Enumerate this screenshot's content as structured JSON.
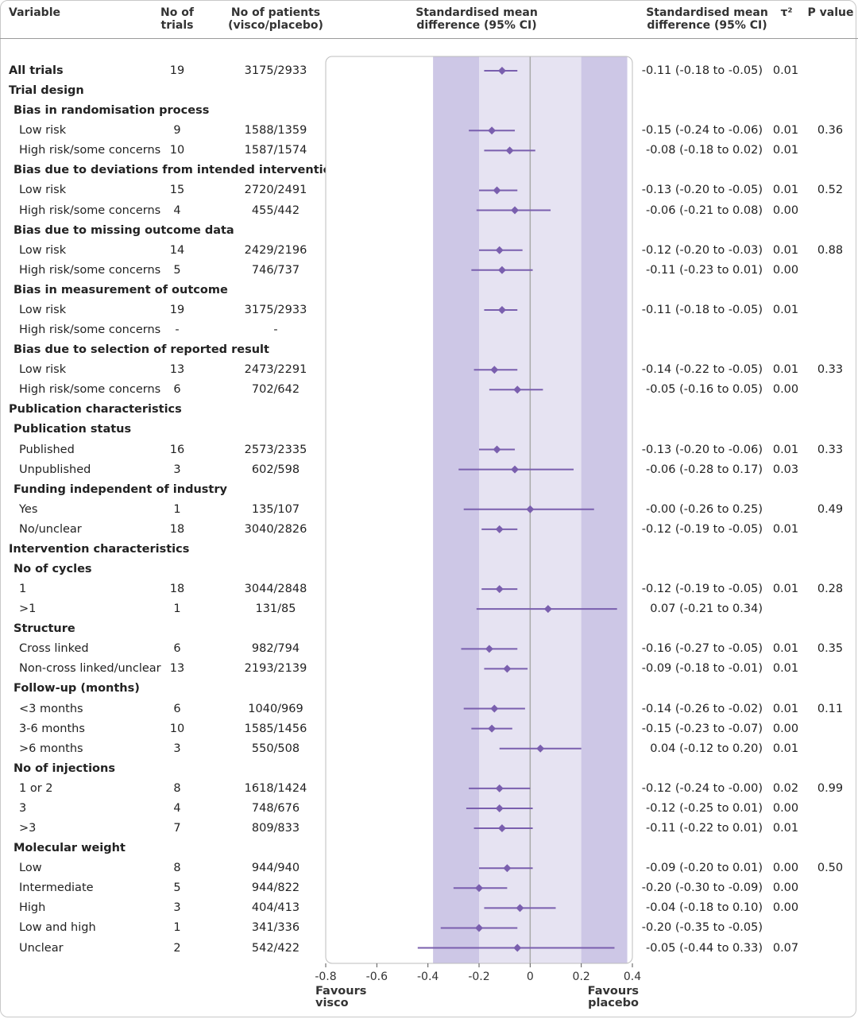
{
  "headers": {
    "variable": "Variable",
    "trials": "No of\ntrials",
    "patients": "No of patients\n(visco/placebo)",
    "plot": "Standardised mean\ndifference (95% CI)",
    "smd": "Standardised mean\ndifference (95% CI)",
    "tau": "τ²",
    "p": "P value"
  },
  "favours": {
    "left": "Favours\nvisco",
    "right": "Favours\nplacebo"
  },
  "colors": {
    "point": "#7a5fae",
    "outer_band": "#cdc7e6",
    "inner_band": "#e6e3f2",
    "zero_line": "#a9a9a9"
  },
  "chart_data": {
    "type": "forest",
    "title": "Standardised mean difference (95% CI)",
    "xlabel": "",
    "xlim": [
      -0.8,
      0.4
    ],
    "xticks": [
      -0.8,
      -0.6,
      -0.4,
      -0.2,
      0,
      0.2,
      0.4
    ],
    "xtick_labels": [
      "-0.8",
      "-0.6",
      "-0.4",
      "-0.2",
      "0",
      "0.2",
      "0.4"
    ],
    "bands": {
      "outer": [
        -0.38,
        0.38
      ],
      "inner": [
        -0.2,
        0.2
      ]
    },
    "rows": [
      {
        "label": "All trials",
        "level": 0,
        "bold": true,
        "trials": "19",
        "patients": "3175/2933",
        "est": -0.11,
        "lo": -0.18,
        "hi": -0.05,
        "ci": "-0.11 (-0.18 to -0.05)",
        "tau": "0.01",
        "p": ""
      },
      {
        "label": "Trial design",
        "level": 0,
        "bold": true
      },
      {
        "label": "Bias in randomisation process",
        "level": 1,
        "bold": true
      },
      {
        "label": "Low risk",
        "level": 2,
        "trials": "9",
        "patients": "1588/1359",
        "est": -0.15,
        "lo": -0.24,
        "hi": -0.06,
        "ci": "-0.15 (-0.24 to -0.06)",
        "tau": "0.01",
        "p": "0.36"
      },
      {
        "label": "High risk/some concerns",
        "level": 2,
        "trials": "10",
        "patients": "1587/1574",
        "est": -0.08,
        "lo": -0.18,
        "hi": 0.02,
        "ci": "-0.08 (-0.18 to 0.02)",
        "tau": "0.01",
        "p": ""
      },
      {
        "label": "Bias due to deviations from intended interventions",
        "level": 1,
        "bold": true
      },
      {
        "label": "Low risk",
        "level": 2,
        "trials": "15",
        "patients": "2720/2491",
        "est": -0.13,
        "lo": -0.2,
        "hi": -0.05,
        "ci": "-0.13 (-0.20 to -0.05)",
        "tau": "0.01",
        "p": "0.52"
      },
      {
        "label": "High risk/some concerns",
        "level": 2,
        "trials": "4",
        "patients": "455/442",
        "est": -0.06,
        "lo": -0.21,
        "hi": 0.08,
        "ci": "-0.06 (-0.21 to 0.08)",
        "tau": "0.00",
        "p": ""
      },
      {
        "label": "Bias due to missing outcome data",
        "level": 1,
        "bold": true
      },
      {
        "label": "Low risk",
        "level": 2,
        "trials": "14",
        "patients": "2429/2196",
        "est": -0.12,
        "lo": -0.2,
        "hi": -0.03,
        "ci": "-0.12 (-0.20 to -0.03)",
        "tau": "0.01",
        "p": "0.88"
      },
      {
        "label": "High risk/some concerns",
        "level": 2,
        "trials": "5",
        "patients": "746/737",
        "est": -0.11,
        "lo": -0.23,
        "hi": 0.01,
        "ci": "-0.11 (-0.23 to 0.01)",
        "tau": "0.00",
        "p": ""
      },
      {
        "label": "Bias in measurement of outcome",
        "level": 1,
        "bold": true
      },
      {
        "label": "Low risk",
        "level": 2,
        "trials": "19",
        "patients": "3175/2933",
        "est": -0.11,
        "lo": -0.18,
        "hi": -0.05,
        "ci": "-0.11 (-0.18 to -0.05)",
        "tau": "0.01",
        "p": ""
      },
      {
        "label": "High risk/some concerns",
        "level": 2,
        "trials": "-",
        "patients": "-"
      },
      {
        "label": "Bias due to selection of reported result",
        "level": 1,
        "bold": true
      },
      {
        "label": "Low risk",
        "level": 2,
        "trials": "13",
        "patients": "2473/2291",
        "est": -0.14,
        "lo": -0.22,
        "hi": -0.05,
        "ci": "-0.14 (-0.22 to -0.05)",
        "tau": "0.01",
        "p": "0.33"
      },
      {
        "label": "High risk/some concerns",
        "level": 2,
        "trials": "6",
        "patients": "702/642",
        "est": -0.05,
        "lo": -0.16,
        "hi": 0.05,
        "ci": "-0.05 (-0.16 to 0.05)",
        "tau": "0.00",
        "p": ""
      },
      {
        "label": "Publication characteristics",
        "level": 0,
        "bold": true
      },
      {
        "label": "Publication status",
        "level": 1,
        "bold": true
      },
      {
        "label": "Published",
        "level": 2,
        "trials": "16",
        "patients": "2573/2335",
        "est": -0.13,
        "lo": -0.2,
        "hi": -0.06,
        "ci": "-0.13 (-0.20 to -0.06)",
        "tau": "0.01",
        "p": "0.33"
      },
      {
        "label": "Unpublished",
        "level": 2,
        "trials": "3",
        "patients": "602/598",
        "est": -0.06,
        "lo": -0.28,
        "hi": 0.17,
        "ci": "-0.06 (-0.28 to 0.17)",
        "tau": "0.03",
        "p": ""
      },
      {
        "label": "Funding independent of industry",
        "level": 1,
        "bold": true
      },
      {
        "label": "Yes",
        "level": 2,
        "trials": "1",
        "patients": "135/107",
        "est": -0.0,
        "lo": -0.26,
        "hi": 0.25,
        "ci": "-0.00 (-0.26 to 0.25)",
        "tau": "",
        "p": "0.49"
      },
      {
        "label": "No/unclear",
        "level": 2,
        "trials": "18",
        "patients": "3040/2826",
        "est": -0.12,
        "lo": -0.19,
        "hi": -0.05,
        "ci": "-0.12 (-0.19 to -0.05)",
        "tau": "0.01",
        "p": ""
      },
      {
        "label": "Intervention characteristics",
        "level": 0,
        "bold": true
      },
      {
        "label": "No of cycles",
        "level": 1,
        "bold": true
      },
      {
        "label": "1",
        "level": 2,
        "trials": "18",
        "patients": "3044/2848",
        "est": -0.12,
        "lo": -0.19,
        "hi": -0.05,
        "ci": "-0.12 (-0.19 to -0.05)",
        "tau": "0.01",
        "p": "0.28"
      },
      {
        "label": ">1",
        "level": 2,
        "trials": "1",
        "patients": "131/85",
        "est": 0.07,
        "lo": -0.21,
        "hi": 0.34,
        "ci": "0.07 (-0.21 to 0.34)",
        "tau": "",
        "p": ""
      },
      {
        "label": "Structure",
        "level": 1,
        "bold": true
      },
      {
        "label": "Cross linked",
        "level": 2,
        "trials": "6",
        "patients": "982/794",
        "est": -0.16,
        "lo": -0.27,
        "hi": -0.05,
        "ci": "-0.16 (-0.27 to -0.05)",
        "tau": "0.01",
        "p": "0.35"
      },
      {
        "label": "Non-cross linked/unclear",
        "level": 2,
        "trials": "13",
        "patients": "2193/2139",
        "est": -0.09,
        "lo": -0.18,
        "hi": -0.01,
        "ci": "-0.09 (-0.18 to -0.01)",
        "tau": "0.01",
        "p": ""
      },
      {
        "label": "Follow-up (months)",
        "level": 1,
        "bold": true
      },
      {
        "label": "<3 months",
        "level": 2,
        "trials": "6",
        "patients": "1040/969",
        "est": -0.14,
        "lo": -0.26,
        "hi": -0.02,
        "ci": "-0.14 (-0.26 to -0.02)",
        "tau": "0.01",
        "p": "0.11"
      },
      {
        "label": "3-6 months",
        "level": 2,
        "trials": "10",
        "patients": "1585/1456",
        "est": -0.15,
        "lo": -0.23,
        "hi": -0.07,
        "ci": "-0.15 (-0.23 to -0.07)",
        "tau": "0.00",
        "p": ""
      },
      {
        "label": ">6 months",
        "level": 2,
        "trials": "3",
        "patients": "550/508",
        "est": 0.04,
        "lo": -0.12,
        "hi": 0.2,
        "ci": "0.04 (-0.12 to 0.20)",
        "tau": "0.01",
        "p": ""
      },
      {
        "label": "No of injections",
        "level": 1,
        "bold": true
      },
      {
        "label": "1 or 2",
        "level": 2,
        "trials": "8",
        "patients": "1618/1424",
        "est": -0.12,
        "lo": -0.24,
        "hi": -0.0,
        "ci": "-0.12 (-0.24 to -0.00)",
        "tau": "0.02",
        "p": "0.99"
      },
      {
        "label": "3",
        "level": 2,
        "trials": "4",
        "patients": "748/676",
        "est": -0.12,
        "lo": -0.25,
        "hi": 0.01,
        "ci": "-0.12 (-0.25 to 0.01)",
        "tau": "0.00",
        "p": ""
      },
      {
        "label": ">3",
        "level": 2,
        "trials": "7",
        "patients": "809/833",
        "est": -0.11,
        "lo": -0.22,
        "hi": 0.01,
        "ci": "-0.11 (-0.22 to 0.01)",
        "tau": "0.01",
        "p": ""
      },
      {
        "label": "Molecular weight",
        "level": 1,
        "bold": true
      },
      {
        "label": "Low",
        "level": 2,
        "trials": "8",
        "patients": "944/940",
        "est": -0.09,
        "lo": -0.2,
        "hi": 0.01,
        "ci": "-0.09 (-0.20 to 0.01)",
        "tau": "0.00",
        "p": "0.50"
      },
      {
        "label": "Intermediate",
        "level": 2,
        "trials": "5",
        "patients": "944/822",
        "est": -0.2,
        "lo": -0.3,
        "hi": -0.09,
        "ci": "-0.20 (-0.30 to -0.09)",
        "tau": "0.00",
        "p": ""
      },
      {
        "label": "High",
        "level": 2,
        "trials": "3",
        "patients": "404/413",
        "est": -0.04,
        "lo": -0.18,
        "hi": 0.1,
        "ci": "-0.04 (-0.18 to 0.10)",
        "tau": "0.00",
        "p": ""
      },
      {
        "label": "Low and  high",
        "level": 2,
        "trials": "1",
        "patients": "341/336",
        "est": -0.2,
        "lo": -0.35,
        "hi": -0.05,
        "ci": "-0.20 (-0.35 to -0.05)",
        "tau": "",
        "p": ""
      },
      {
        "label": "Unclear",
        "level": 2,
        "trials": "2",
        "patients": "542/422",
        "est": -0.05,
        "lo": -0.44,
        "hi": 0.33,
        "ci": "-0.05 (-0.44 to 0.33)",
        "tau": "0.07",
        "p": ""
      }
    ]
  }
}
